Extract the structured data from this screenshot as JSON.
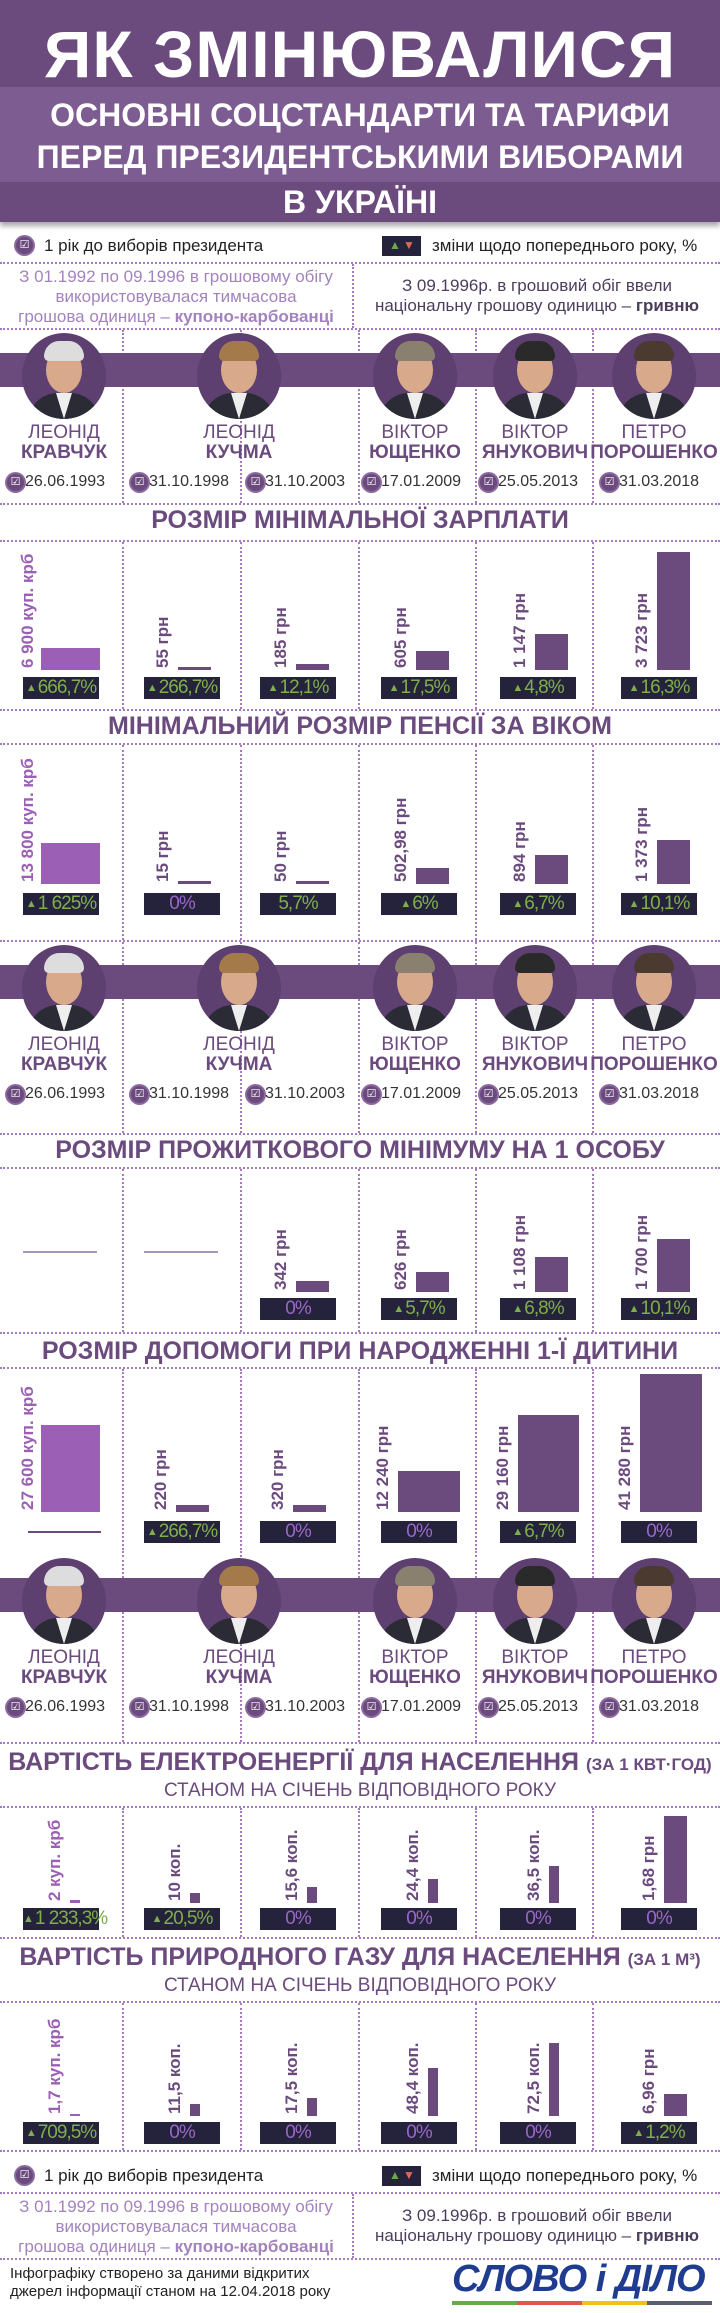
{
  "header": {
    "title_line1": "ЯК ЗМІНЮВАЛИСЯ",
    "title_line2": "ОСНОВНІ СОЦСТАНДАРТИ ТА ТАРИФИ",
    "title_line3": "ПЕРЕД ПРЕЗИДЕНТСЬКИМИ ВИБОРАМИ",
    "title_line4": "В УКРАЇНІ"
  },
  "legend": {
    "election_year_label": "1 рік до виборів президента",
    "change_label": "зміни щодо попереднього року, %"
  },
  "notes": {
    "coupon_lines": [
      "З 01.1992 по 09.1996 в грошовому обігу",
      "використовувалася тимчасова",
      "грошова одиниця – "
    ],
    "coupon_bold": "купоно-карбованці",
    "hryvnia_lines": [
      "З 09.1996р. в грошовий обіг ввели",
      "національну грошову одиницю – "
    ],
    "hryvnia_bold": "гривню"
  },
  "presidents": [
    {
      "first": "ЛЕОНІД",
      "last": "КРАВЧУК"
    },
    {
      "first": "ЛЕОНІД",
      "last": "КУЧМА"
    },
    {
      "first": "ВІКТОР",
      "last": "ЮЩЕНКО"
    },
    {
      "first": "ВІКТОР",
      "last": "ЯНУКОВИЧ"
    },
    {
      "first": "ПЕТРО",
      "last": "ПОРОШЕНКО"
    }
  ],
  "dates": [
    "26.06.1993",
    "31.10.1998",
    "31.10.2003",
    "17.01.2009",
    "25.05.2013",
    "31.03.2018"
  ],
  "chart_data": [
    {
      "type": "bar",
      "id": "wage",
      "title": "РОЗМІР МІНІМАЛЬНОЇ ЗАРПЛАТИ",
      "items": [
        {
          "label": "6 900 куп. крб",
          "value": 6900,
          "unit": "kup",
          "change": "666,7%",
          "arrow": true,
          "color": "green"
        },
        {
          "label": "55 грн",
          "value": 55,
          "unit": "grn",
          "change": "266,7%",
          "arrow": true,
          "color": "green"
        },
        {
          "label": "185 грн",
          "value": 185,
          "unit": "grn",
          "change": "12,1%",
          "arrow": true,
          "color": "green"
        },
        {
          "label": "605 грн",
          "value": 605,
          "unit": "grn",
          "change": "17,5%",
          "arrow": true,
          "color": "green"
        },
        {
          "label": "1 147 грн",
          "value": 1147,
          "unit": "grn",
          "change": "4,8%",
          "arrow": true,
          "color": "green"
        },
        {
          "label": "3 723 грн",
          "value": 3723,
          "unit": "grn",
          "change": "16,3%",
          "arrow": true,
          "color": "green"
        }
      ]
    },
    {
      "type": "bar",
      "id": "pension",
      "title": "МІНІМАЛЬНИЙ РОЗМІР ПЕНСІЇ ЗА ВІКОМ",
      "items": [
        {
          "label": "13 800 куп. крб",
          "value": 13800,
          "unit": "kup",
          "change": "1 625%",
          "arrow": true,
          "color": "green"
        },
        {
          "label": "15 грн",
          "value": 15,
          "unit": "grn",
          "change": "0%",
          "arrow": false,
          "color": "purple"
        },
        {
          "label": "50 грн",
          "value": 50,
          "unit": "grn",
          "change": "5,7%",
          "arrow": false,
          "color": "green"
        },
        {
          "label": "502,98 грн",
          "value": 502.98,
          "unit": "grn",
          "change": "6%",
          "arrow": true,
          "color": "green"
        },
        {
          "label": "894 грн",
          "value": 894,
          "unit": "grn",
          "change": "6,7%",
          "arrow": true,
          "color": "green"
        },
        {
          "label": "1 373 грн",
          "value": 1373,
          "unit": "grn",
          "change": "10,1%",
          "arrow": true,
          "color": "green"
        }
      ]
    },
    {
      "type": "bar",
      "id": "subsistence",
      "title": "РОЗМІР ПРОЖИТКОВОГО МІНІМУМУ НА 1 ОСОБУ",
      "items": [
        {
          "label": null,
          "value": null,
          "unit": null,
          "change": null
        },
        {
          "label": null,
          "value": null,
          "unit": null,
          "change": null
        },
        {
          "label": "342 грн",
          "value": 342,
          "unit": "grn",
          "change": "0%",
          "arrow": false,
          "color": "purple"
        },
        {
          "label": "626 грн",
          "value": 626,
          "unit": "grn",
          "change": "5,7%",
          "arrow": true,
          "color": "green"
        },
        {
          "label": "1 108 грн",
          "value": 1108,
          "unit": "grn",
          "change": "6,8%",
          "arrow": true,
          "color": "green"
        },
        {
          "label": "1 700 грн",
          "value": 1700,
          "unit": "grn",
          "change": "10,1%",
          "arrow": true,
          "color": "green"
        }
      ]
    },
    {
      "type": "bar",
      "id": "birth",
      "title": "РОЗМІР ДОПОМОГИ ПРИ НАРОДЖЕННІ 1-Ї ДИТИНИ",
      "items": [
        {
          "label": "27 600 куп. крб",
          "value": 27600,
          "unit": "kup",
          "change": null
        },
        {
          "label": "220 грн",
          "value": 220,
          "unit": "grn",
          "change": "266,7%",
          "arrow": true,
          "color": "green"
        },
        {
          "label": "320 грн",
          "value": 320,
          "unit": "grn",
          "change": "0%",
          "arrow": false,
          "color": "purple"
        },
        {
          "label": "12 240 грн",
          "value": 12240,
          "unit": "grn",
          "change": "0%",
          "arrow": false,
          "color": "purple"
        },
        {
          "label": "29 160 грн",
          "value": 29160,
          "unit": "grn",
          "change": "6,7%",
          "arrow": true,
          "color": "green"
        },
        {
          "label": "41 280 грн",
          "value": 41280,
          "unit": "grn",
          "change": "0%",
          "arrow": false,
          "color": "purple"
        }
      ]
    },
    {
      "type": "bar",
      "id": "electricity",
      "title": "ВАРТІСТЬ ЕЛЕКТРОЕНЕРГІЇ ДЛЯ НАСЕЛЕННЯ",
      "title_suffix": "(ЗА 1 КВТ·ГОД)",
      "subtitle": "СТАНОМ НА СІЧЕНЬ ВІДПОВІДНОГО РОКУ",
      "items": [
        {
          "label": "2 куп. крб",
          "value": 2,
          "unit": "kup",
          "change": "1 233,3%",
          "arrow": true,
          "color": "green"
        },
        {
          "label": "10 коп.",
          "value": 10,
          "unit": "kop",
          "change": "20,5%",
          "arrow": true,
          "color": "green"
        },
        {
          "label": "15,6 коп.",
          "value": 15.6,
          "unit": "kop",
          "change": "0%",
          "arrow": false,
          "color": "purple"
        },
        {
          "label": "24,4 коп.",
          "value": 24.4,
          "unit": "kop",
          "change": "0%",
          "arrow": false,
          "color": "purple"
        },
        {
          "label": "36,5 коп.",
          "value": 36.5,
          "unit": "kop",
          "change": "0%",
          "arrow": false,
          "color": "purple"
        },
        {
          "label": "1,68 грн",
          "value": 1.68,
          "unit": "grn",
          "change": "0%",
          "arrow": false,
          "color": "purple"
        }
      ]
    },
    {
      "type": "bar",
      "id": "gas",
      "title": "ВАРТІСТЬ ПРИРОДНОГО ГАЗУ ДЛЯ НАСЕЛЕННЯ",
      "title_suffix": "(ЗА 1 М³)",
      "subtitle": "СТАНОМ НА СІЧЕНЬ ВІДПОВІДНОГО РОКУ",
      "items": [
        {
          "label": "1,7 куп. крб",
          "value": 1.7,
          "unit": "kup",
          "change": "709,5%",
          "arrow": true,
          "color": "green"
        },
        {
          "label": "11,5 коп.",
          "value": 11.5,
          "unit": "kop",
          "change": "0%",
          "arrow": false,
          "color": "purple"
        },
        {
          "label": "17,5 коп.",
          "value": 17.5,
          "unit": "kop",
          "change": "0%",
          "arrow": false,
          "color": "purple"
        },
        {
          "label": "48,4 коп.",
          "value": 48.4,
          "unit": "kop",
          "change": "0%",
          "arrow": false,
          "color": "purple"
        },
        {
          "label": "72,5 коп.",
          "value": 72.5,
          "unit": "kop",
          "change": "0%",
          "arrow": false,
          "color": "purple"
        },
        {
          "label": "6,96 грн",
          "value": 6.96,
          "unit": "grn",
          "change": "1,2%",
          "arrow": true,
          "color": "green"
        }
      ]
    }
  ],
  "footer": {
    "source_line1": "Інфографіку створено за даними відкритих",
    "source_line2": "джерел інформації станом на 12.04.2018 року",
    "logo": "СЛОВО і ДІЛО"
  },
  "colors": {
    "brand_purple": "#6b4a7e",
    "coupon_purple": "#9b5fb5",
    "up_green": "#7fae4c",
    "box_dark": "#25233b",
    "logo_blue": "#1f3c91"
  }
}
